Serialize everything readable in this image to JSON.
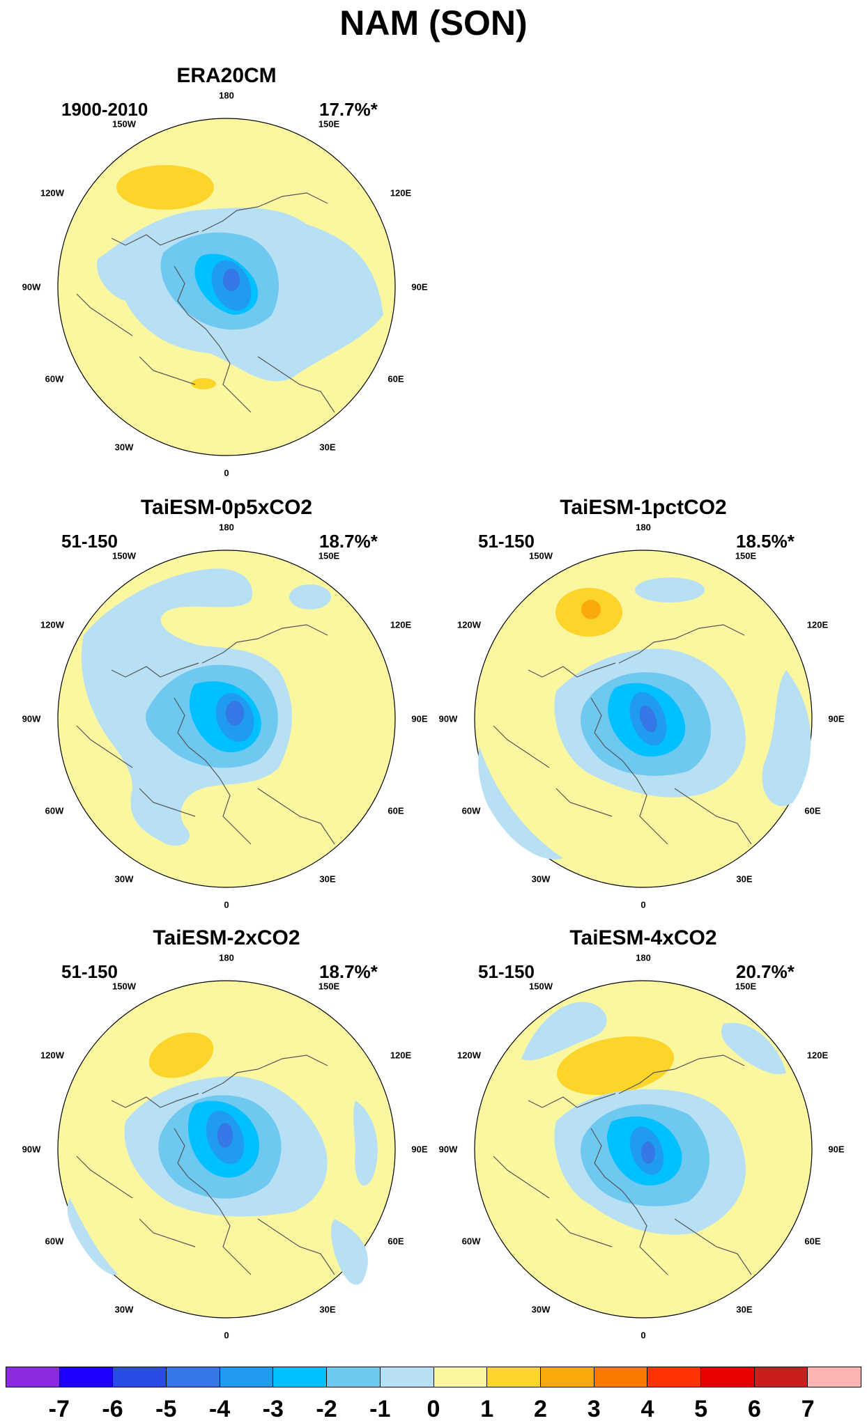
{
  "title": "NAM (SON)",
  "lon_labels": [
    "180",
    "150E",
    "120E",
    "90E",
    "60E",
    "30E",
    "0",
    "30W",
    "60W",
    "90W",
    "120W",
    "150W"
  ],
  "panels": [
    {
      "name": "era20cm",
      "title": "ERA20CM",
      "period": "1900-2010",
      "variance": "17.7%*"
    },
    {
      "name": "taiesm-0p5xco2",
      "title": "TaiESM-0p5xCO2",
      "period": "51-150",
      "variance": "18.7%*"
    },
    {
      "name": "taiesm-1pctco2",
      "title": "TaiESM-1pctCO2",
      "period": "51-150",
      "variance": "18.5%*"
    },
    {
      "name": "taiesm-2xco2",
      "title": "TaiESM-2xCO2",
      "period": "51-150",
      "variance": "18.7%*"
    },
    {
      "name": "taiesm-4xco2",
      "title": "TaiESM-4xCO2",
      "period": "51-150",
      "variance": "20.7%*"
    }
  ],
  "colorbar": {
    "colors": [
      "#8a2be2",
      "#1e00ff",
      "#2b4be6",
      "#3577e6",
      "#1f9bf0",
      "#00c0ff",
      "#6ec8f0",
      "#b8e0f5",
      "#fbf7a0",
      "#fcd42a",
      "#fba90a",
      "#fa7a00",
      "#ff3300",
      "#e80000",
      "#c81e1e",
      "#ffb4b4"
    ],
    "labels": [
      "-7",
      "-6",
      "-5",
      "-4",
      "-3",
      "-2",
      "-1",
      "0",
      "1",
      "2",
      "3",
      "4",
      "5",
      "6",
      "7"
    ]
  },
  "colors": {
    "land_outline": "#555555",
    "background": "#fbf7a0"
  }
}
